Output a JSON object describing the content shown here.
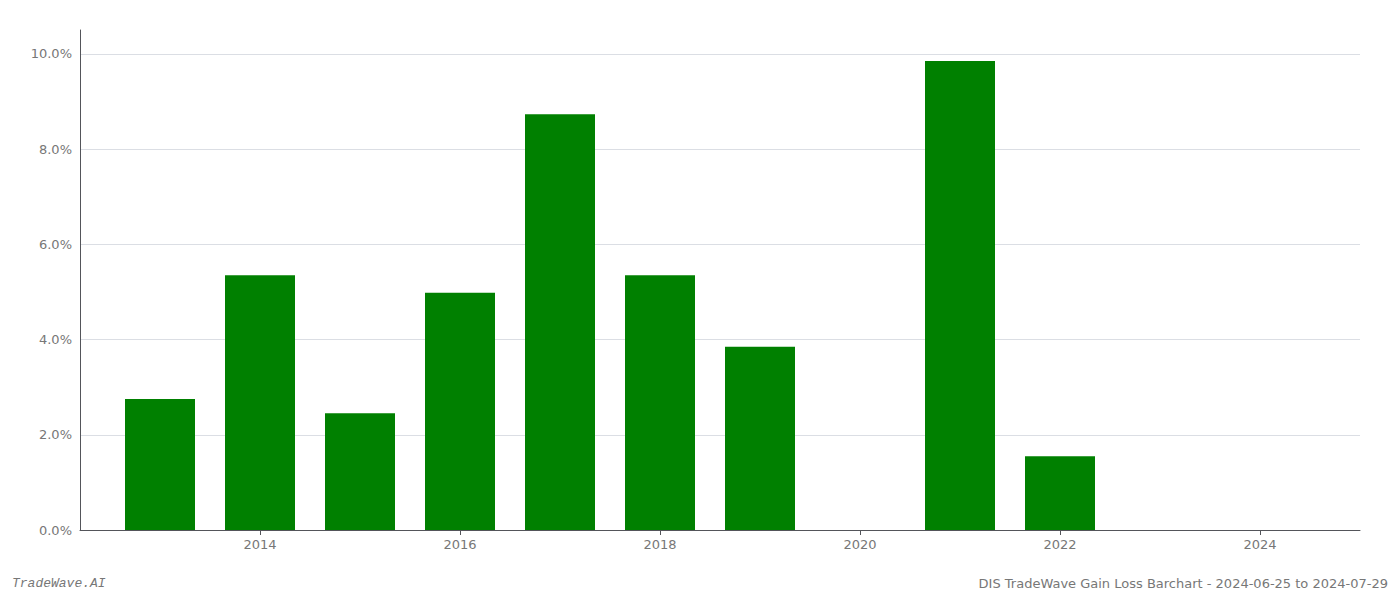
{
  "chart_data": {
    "type": "bar",
    "x": [
      2013,
      2014,
      2015,
      2016,
      2017,
      2018,
      2019,
      2020,
      2021,
      2022,
      2023,
      2024
    ],
    "values": [
      0.0275,
      0.0535,
      0.0245,
      0.0498,
      0.0873,
      0.0535,
      0.0385,
      0.0,
      0.0985,
      0.0155,
      0.0,
      0.0
    ],
    "color": "#008000",
    "xlim": [
      2012.2,
      2025.0
    ],
    "xticks": [
      2014,
      2016,
      2018,
      2020,
      2022,
      2024
    ],
    "ylim": [
      0.0,
      0.105
    ],
    "yticks": [
      {
        "value": 0.0,
        "label": "0.0%"
      },
      {
        "value": 0.02,
        "label": "2.0%"
      },
      {
        "value": 0.04,
        "label": "4.0%"
      },
      {
        "value": 0.06,
        "label": "6.0%"
      },
      {
        "value": 0.08,
        "label": "8.0%"
      },
      {
        "value": 0.1,
        "label": "10.0%"
      }
    ],
    "grid": true,
    "annotations": [
      "TradeWave.AI",
      "DIS TradeWave Gain Loss Barchart - 2024-06-25 to 2024-07-29"
    ]
  }
}
